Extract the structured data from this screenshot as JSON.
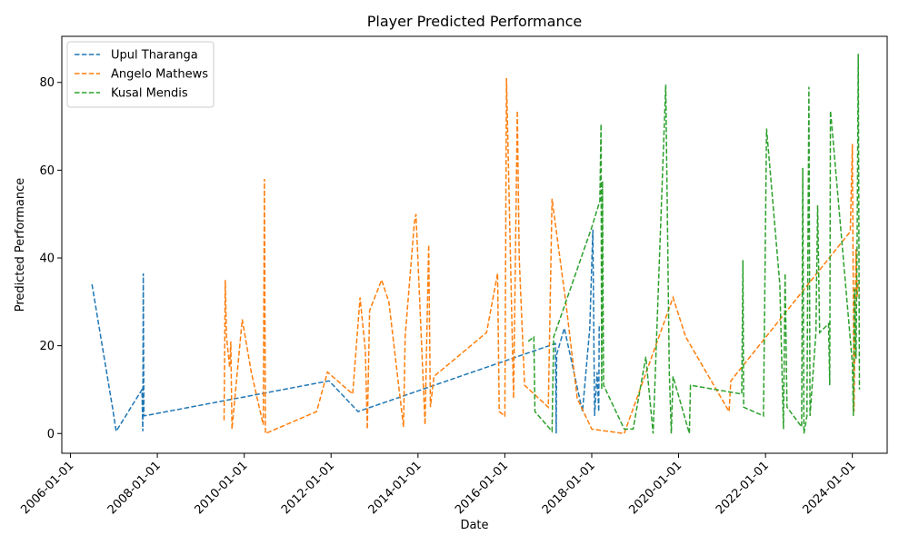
{
  "chart_data": {
    "type": "line",
    "title": "Player Predicted Performance",
    "xlabel": "Date",
    "ylabel": "Predicted Performance",
    "x_ticks": [
      "2006-01-01",
      "2008-01-01",
      "2010-01-01",
      "2012-01-01",
      "2014-01-01",
      "2016-01-01",
      "2018-01-01",
      "2020-01-01",
      "2022-01-01",
      "2024-01-01"
    ],
    "y_ticks": [
      0,
      20,
      40,
      60,
      80
    ],
    "xlim": [
      "2005-10-20",
      "2024-10-20"
    ],
    "ylim": [
      -4.5,
      90.5
    ],
    "legend_position": "upper-left",
    "grid": false,
    "line_style": "dashed",
    "series": [
      {
        "name": "Upul Tharanga",
        "color": "#1f77b4",
        "points": [
          [
            "2006-07-01",
            34
          ],
          [
            "2006-12-20",
            6
          ],
          [
            "2007-01-20",
            0.5
          ],
          [
            "2007-08-25",
            10
          ],
          [
            "2007-09-01",
            0.5
          ],
          [
            "2007-09-05",
            36.5
          ],
          [
            "2007-09-10",
            4
          ],
          [
            "2011-12-15",
            12
          ],
          [
            "2012-08-15",
            5
          ],
          [
            "2017-03-01",
            20.5
          ],
          [
            "2017-03-08",
            0
          ],
          [
            "2017-03-12",
            18
          ],
          [
            "2017-05-15",
            24
          ],
          [
            "2017-10-15",
            5
          ],
          [
            "2017-12-15",
            24
          ],
          [
            "2018-01-10",
            46.5
          ],
          [
            "2018-01-25",
            4
          ],
          [
            "2018-02-15",
            14
          ],
          [
            "2018-03-01",
            5
          ],
          [
            "2018-03-05",
            25
          ]
        ]
      },
      {
        "name": "Angelo Mathews",
        "color": "#ff7f0e",
        "points": [
          [
            "2009-07-15",
            3
          ],
          [
            "2009-07-25",
            35
          ],
          [
            "2009-08-05",
            22
          ],
          [
            "2009-09-01",
            15
          ],
          [
            "2009-09-10",
            21
          ],
          [
            "2009-09-20",
            1
          ],
          [
            "2009-12-15",
            26
          ],
          [
            "2010-03-01",
            14
          ],
          [
            "2010-06-10",
            2
          ],
          [
            "2010-06-20",
            58
          ],
          [
            "2010-06-28",
            0
          ],
          [
            "2011-09-01",
            5
          ],
          [
            "2011-12-01",
            14
          ],
          [
            "2012-07-01",
            9
          ],
          [
            "2012-09-01",
            31
          ],
          [
            "2012-10-15",
            19
          ],
          [
            "2012-11-01",
            1
          ],
          [
            "2012-11-20",
            28
          ],
          [
            "2013-03-01",
            35
          ],
          [
            "2013-05-01",
            30
          ],
          [
            "2013-09-01",
            1.5
          ],
          [
            "2013-09-15",
            22
          ],
          [
            "2013-12-01",
            48
          ],
          [
            "2013-12-15",
            50
          ],
          [
            "2014-03-01",
            2
          ],
          [
            "2014-04-01",
            43
          ],
          [
            "2014-04-15",
            6
          ],
          [
            "2014-05-15",
            13
          ],
          [
            "2015-08-01",
            23
          ],
          [
            "2015-11-01",
            36.5
          ],
          [
            "2015-11-15",
            5
          ],
          [
            "2016-01-01",
            4
          ],
          [
            "2016-01-15",
            81
          ],
          [
            "2016-03-15",
            8
          ],
          [
            "2016-04-15",
            73.5
          ],
          [
            "2016-05-01",
            40
          ],
          [
            "2016-06-15",
            11
          ],
          [
            "2017-01-01",
            6
          ],
          [
            "2017-02-01",
            53.5
          ],
          [
            "2017-06-01",
            29
          ],
          [
            "2017-09-01",
            8
          ],
          [
            "2018-01-01",
            1
          ],
          [
            "2018-10-01",
            0
          ],
          [
            "2019-11-15",
            31
          ],
          [
            "2020-03-01",
            22
          ],
          [
            "2021-03-01",
            5
          ],
          [
            "2021-03-15",
            12
          ],
          [
            "2023-12-15",
            46
          ],
          [
            "2024-01-01",
            66
          ],
          [
            "2024-01-15",
            5
          ],
          [
            "2024-02-01",
            42
          ],
          [
            "2024-02-10",
            31
          ],
          [
            "2024-02-20",
            35
          ]
        ]
      },
      {
        "name": "Kusal Mendis",
        "color": "#2ca02c",
        "points": [
          [
            "2016-07-15",
            21
          ],
          [
            "2016-09-01",
            22
          ],
          [
            "2016-09-10",
            5
          ],
          [
            "2017-02-01",
            0.5
          ],
          [
            "2017-02-15",
            22
          ],
          [
            "2018-01-01",
            47
          ],
          [
            "2018-03-10",
            53
          ],
          [
            "2018-03-20",
            70.5
          ],
          [
            "2018-03-25",
            10
          ],
          [
            "2018-04-01",
            57.5
          ],
          [
            "2018-04-10",
            11
          ],
          [
            "2018-10-01",
            1
          ],
          [
            "2018-12-15",
            1
          ],
          [
            "2019-04-01",
            17.5
          ],
          [
            "2019-06-01",
            0
          ],
          [
            "2019-09-15",
            79.5
          ],
          [
            "2019-10-15",
            14
          ],
          [
            "2019-11-01",
            0
          ],
          [
            "2019-11-15",
            13
          ],
          [
            "2020-04-01",
            0
          ],
          [
            "2020-04-10",
            11
          ],
          [
            "2021-06-15",
            9
          ],
          [
            "2021-06-25",
            39.5
          ],
          [
            "2021-07-01",
            6
          ],
          [
            "2021-12-15",
            4
          ],
          [
            "2022-01-10",
            69.5
          ],
          [
            "2022-05-01",
            34
          ],
          [
            "2022-06-01",
            1
          ],
          [
            "2022-06-15",
            36.5
          ],
          [
            "2022-07-01",
            6
          ],
          [
            "2022-11-01",
            1.5
          ],
          [
            "2022-11-10",
            60.5
          ],
          [
            "2022-11-20",
            0
          ],
          [
            "2022-12-15",
            4
          ],
          [
            "2023-01-01",
            79
          ],
          [
            "2023-01-10",
            4
          ],
          [
            "2023-03-01",
            23
          ],
          [
            "2023-03-15",
            52
          ],
          [
            "2023-04-01",
            23
          ],
          [
            "2023-06-15",
            25
          ],
          [
            "2023-06-25",
            11
          ],
          [
            "2023-07-01",
            73.5
          ],
          [
            "2023-07-15",
            69.5
          ],
          [
            "2024-01-01",
            16
          ],
          [
            "2024-01-10",
            4
          ],
          [
            "2024-01-20",
            33
          ],
          [
            "2024-02-01",
            17
          ],
          [
            "2024-02-10",
            42
          ],
          [
            "2024-02-20",
            86.5
          ],
          [
            "2024-03-01",
            10
          ]
        ]
      }
    ]
  }
}
